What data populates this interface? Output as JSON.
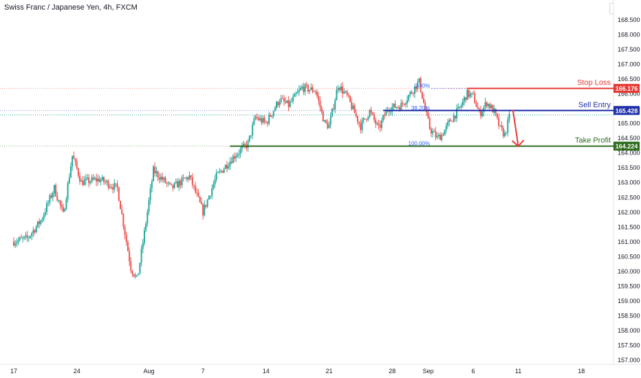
{
  "header": {
    "symbol_title": "Swiss Franc / Japanese Yen, 4h, FXCM",
    "currency": "JPY"
  },
  "colors": {
    "up": "#26a69a",
    "down": "#ef5350",
    "stop": "#e53935",
    "entry": "#1e2fa8",
    "profit": "#2e6b1f",
    "fib": "#2962ff",
    "axis_text": "#131722"
  },
  "chart_data": {
    "type": "candlestick",
    "title": "Swiss Franc / Japanese Yen, 4h, FXCM",
    "ylim": [
      156.75,
      169.0
    ],
    "y_ticks": [
      157.0,
      157.5,
      158.0,
      158.5,
      159.0,
      159.5,
      160.0,
      160.5,
      161.0,
      161.5,
      162.0,
      162.5,
      163.0,
      163.5,
      164.0,
      164.5,
      165.0,
      165.5,
      166.0,
      166.5,
      167.0,
      167.5,
      168.0,
      168.5
    ],
    "x_ticks": [
      {
        "label": "17",
        "day": 0
      },
      {
        "label": "24",
        "day": 7
      },
      {
        "label": "Aug",
        "day": 15
      },
      {
        "label": "7",
        "day": 21
      },
      {
        "label": "14",
        "day": 28
      },
      {
        "label": "21",
        "day": 35
      },
      {
        "label": "28",
        "day": 42
      },
      {
        "label": "Sep",
        "day": 46
      },
      {
        "label": "6",
        "day": 51
      },
      {
        "label": "11",
        "day": 56
      },
      {
        "label": "18",
        "day": 63
      }
    ],
    "anchors": [
      [
        0,
        161.0
      ],
      [
        1.5,
        161.1
      ],
      [
        3,
        161.7
      ],
      [
        4.5,
        162.8
      ],
      [
        5.5,
        161.9
      ],
      [
        6.5,
        163.9
      ],
      [
        7.5,
        163.0
      ],
      [
        9.5,
        163.1
      ],
      [
        11.5,
        162.8
      ],
      [
        13,
        160.1
      ],
      [
        13.7,
        159.7
      ],
      [
        14.5,
        161.3
      ],
      [
        15.5,
        163.4
      ],
      [
        17.5,
        162.8
      ],
      [
        19.5,
        163.2
      ],
      [
        21,
        162.0
      ],
      [
        22.5,
        163.2
      ],
      [
        24.5,
        163.9
      ],
      [
        26,
        164.3
      ],
      [
        26.8,
        165.2
      ],
      [
        28,
        165.0
      ],
      [
        29.5,
        165.8
      ],
      [
        30.5,
        165.6
      ],
      [
        32,
        166.2
      ],
      [
        33.5,
        166.1
      ],
      [
        34.5,
        165.0
      ],
      [
        35,
        164.9
      ],
      [
        36,
        166.3
      ],
      [
        37,
        165.9
      ],
      [
        38.5,
        164.9
      ],
      [
        39.5,
        165.4
      ],
      [
        40.5,
        164.8
      ],
      [
        41.5,
        165.5
      ],
      [
        43,
        165.6
      ],
      [
        44,
        166.0
      ],
      [
        45,
        166.4
      ],
      [
        45.7,
        165.4
      ],
      [
        46.2,
        164.8
      ],
      [
        47,
        164.5
      ],
      [
        47.5,
        164.6
      ],
      [
        48.5,
        165.1
      ],
      [
        49.5,
        165.5
      ],
      [
        50.3,
        166.0
      ],
      [
        51,
        165.9
      ],
      [
        51.7,
        165.3
      ],
      [
        52.5,
        165.7
      ],
      [
        53.3,
        165.4
      ],
      [
        54,
        164.8
      ],
      [
        54.5,
        164.6
      ],
      [
        55,
        165.2
      ]
    ],
    "levels": [
      {
        "name": "Stop Loss",
        "value": 166.176,
        "label": "166.176",
        "start_day": 50.3
      },
      {
        "name": "Sell Entry",
        "value": 165.428,
        "label": "165.428",
        "start_day": 41.0
      },
      {
        "name": "Take Profit",
        "value": 164.224,
        "label": "164.224",
        "start_day": 24.0
      }
    ],
    "fib_levels": [
      {
        "label": "0.00%",
        "value": 166.176
      },
      {
        "label": "38.20%",
        "value": 165.428
      },
      {
        "label": "100.00%",
        "value": 164.224
      }
    ],
    "current_price": 165.28,
    "arrow": {
      "from_day": 55.4,
      "from_value": 165.45,
      "to_day": 56.0,
      "to_value": 164.22
    }
  }
}
